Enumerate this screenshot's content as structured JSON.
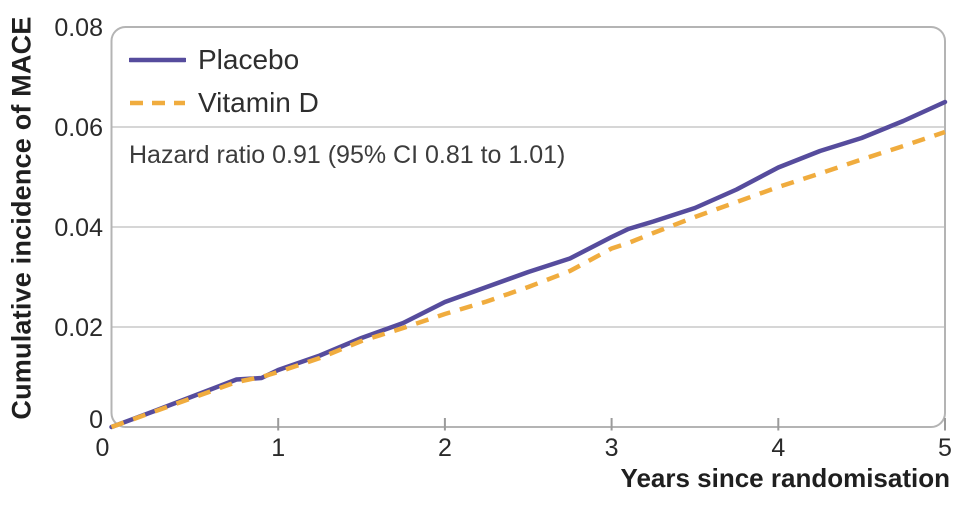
{
  "figure": {
    "background": "#ffffff"
  },
  "chart_data": {
    "type": "line",
    "title": "",
    "xlabel": "Years since randomisation",
    "ylabel": "Cumulative incidence of MACE",
    "annotation": "Hazard ratio 0.91 (95% CI 0.81 to 1.01)",
    "xlim": [
      0,
      5
    ],
    "ylim": [
      0,
      0.08
    ],
    "x_ticks": [
      0,
      1,
      2,
      3,
      4,
      5
    ],
    "x_tick_labels": [
      "0",
      "1",
      "2",
      "3",
      "4",
      "5"
    ],
    "y_ticks": [
      0,
      0.02,
      0.04,
      0.06,
      0.08
    ],
    "y_tick_labels": [
      "0",
      "0.02",
      "0.04",
      "0.06",
      "0.08"
    ],
    "grid": true,
    "legend_position": "upper-left-inside",
    "x": [
      0,
      0.25,
      0.5,
      0.75,
      0.9,
      1,
      1.25,
      1.5,
      1.75,
      2,
      2.25,
      2.5,
      2.75,
      3,
      3.1,
      3.25,
      3.5,
      3.75,
      4,
      4.25,
      4.5,
      4.75,
      5
    ],
    "series": [
      {
        "name": "Placebo",
        "color": "#564c9d",
        "style": "solid",
        "values": [
          0,
          0.0031,
          0.0063,
          0.0095,
          0.0098,
          0.0114,
          0.0143,
          0.0178,
          0.0208,
          0.025,
          0.028,
          0.031,
          0.0337,
          0.038,
          0.0396,
          0.0411,
          0.0438,
          0.0475,
          0.0519,
          0.0552,
          0.0578,
          0.0612,
          0.065
        ]
      },
      {
        "name": "Vitamin D",
        "color": "#f0ac3e",
        "style": "dashed",
        "values": [
          0,
          0.003,
          0.006,
          0.009,
          0.01,
          0.011,
          0.0138,
          0.0172,
          0.0198,
          0.0226,
          0.0251,
          0.028,
          0.0312,
          0.0357,
          0.0368,
          0.0388,
          0.042,
          0.045,
          0.048,
          0.0507,
          0.0535,
          0.0562,
          0.059
        ]
      }
    ],
    "colors": {
      "grid": "#c9c9c9",
      "frame": "#b4b4b4",
      "tick": "#9b9b9b",
      "tick_label": "#2a2a2a",
      "axis_title": "#1f1f1f",
      "annotation_text": "#3c3c3c"
    }
  }
}
